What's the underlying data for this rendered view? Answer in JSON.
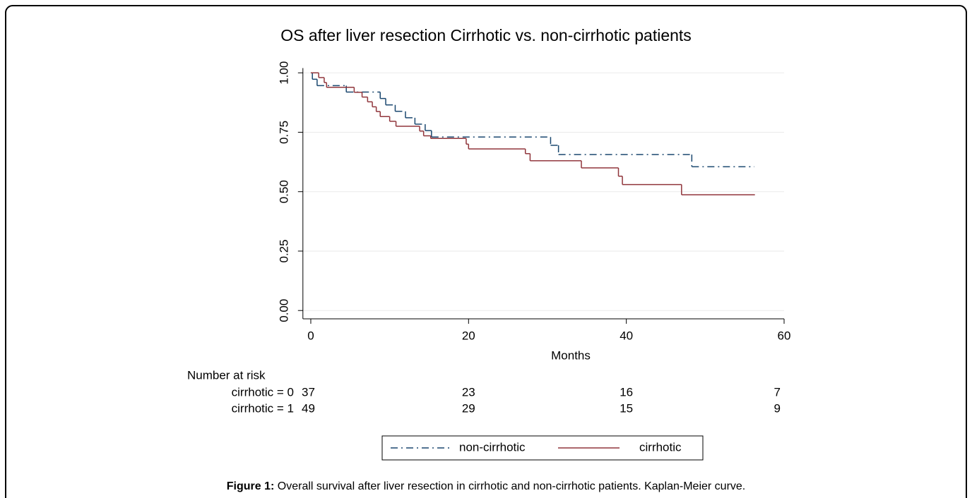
{
  "chart_data": {
    "type": "step",
    "title": "OS after liver resection Cirrhotic vs. non-cirrhotic patients",
    "x_label": "Months",
    "xlim": [
      -1,
      60
    ],
    "xticks": [
      0,
      20,
      40,
      60
    ],
    "ylim": [
      -0.035,
      1.02
    ],
    "yticks": [
      {
        "value": 0,
        "label": "0.00"
      },
      {
        "value": 0.25,
        "label": "0.25"
      },
      {
        "value": 0.5,
        "label": "0.50"
      },
      {
        "value": 0.75,
        "label": "0.75"
      },
      {
        "value": 1,
        "label": "1.00"
      }
    ],
    "grid": true,
    "series": [
      {
        "name": "non-cirrhotic",
        "color": "#1a476f",
        "line_style": "dashdot",
        "x": [
          0,
          0.2,
          0.8,
          4.5,
          8.8,
          9.5,
          10.7,
          12.0,
          13.2,
          14.5,
          15.3,
          30.4,
          31.4,
          48.3,
          56.2
        ],
        "values": [
          1,
          0.973,
          0.946,
          0.919,
          0.892,
          0.865,
          0.838,
          0.811,
          0.784,
          0.757,
          0.73,
          0.695,
          0.656,
          0.605,
          0.605
        ]
      },
      {
        "name": "cirrhotic",
        "color": "#90353b",
        "line_style": "solid",
        "x": [
          0,
          1.0,
          1.7,
          2.0,
          5.5,
          6.5,
          7.2,
          7.8,
          8.3,
          8.8,
          10.0,
          10.8,
          13.8,
          14.3,
          15.2,
          19.7,
          20.0,
          27.2,
          27.8,
          34.3,
          39.0,
          39.5,
          47.0,
          56.3
        ],
        "values": [
          1,
          0.98,
          0.959,
          0.939,
          0.918,
          0.898,
          0.878,
          0.857,
          0.837,
          0.816,
          0.796,
          0.775,
          0.755,
          0.735,
          0.724,
          0.7,
          0.68,
          0.66,
          0.63,
          0.6,
          0.565,
          0.53,
          0.487,
          0.487
        ]
      }
    ],
    "at_risk": {
      "title": "Number at risk",
      "rows": [
        {
          "label": "cirrhotic = 0",
          "values": [
            37,
            23,
            16,
            7
          ]
        },
        {
          "label": "cirrhotic = 1",
          "values": [
            49,
            29,
            15,
            9
          ]
        }
      ]
    }
  },
  "caption": {
    "label": "Figure 1:",
    "text": "Overall survival after liver resection in cirrhotic and non-cirrhotic patients. Kaplan-Meier curve."
  }
}
